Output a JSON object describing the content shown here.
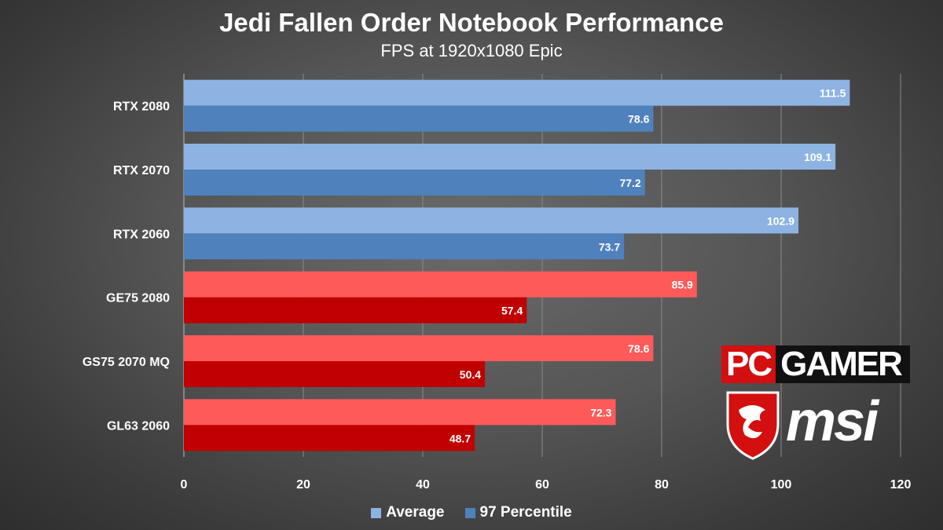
{
  "chart_data": {
    "type": "bar",
    "orientation": "horizontal",
    "title": "Jedi Fallen Order Notebook Performance",
    "subtitle": "FPS at 1920x1080 Epic",
    "categories": [
      "RTX 2080",
      "RTX 2070",
      "RTX 2060",
      "GE75 2080",
      "GS75 2070 MQ",
      "GL63 2060"
    ],
    "series": [
      {
        "name": "Average",
        "values": [
          111.5,
          109.1,
          102.9,
          85.9,
          78.6,
          72.3
        ],
        "colors": [
          "#8db3e2",
          "#8db3e2",
          "#8db3e2",
          "#ff5a5a",
          "#ff5a5a",
          "#ff5a5a"
        ]
      },
      {
        "name": "97 Percentile",
        "values": [
          78.6,
          77.2,
          73.7,
          57.4,
          50.4,
          48.7
        ],
        "colors": [
          "#4f81bd",
          "#4f81bd",
          "#4f81bd",
          "#c00000",
          "#c00000",
          "#c00000"
        ]
      }
    ],
    "xlim": [
      0,
      120
    ],
    "xticks": [
      0,
      20,
      40,
      60,
      80,
      100,
      120
    ],
    "grid": true,
    "legend_position": "bottom",
    "legend_colors": [
      "#8db3e2",
      "#4f81bd"
    ]
  },
  "logos": {
    "pcgamer_pc": "PC",
    "pcgamer_gamer": "GAMER",
    "msi": "msi"
  }
}
